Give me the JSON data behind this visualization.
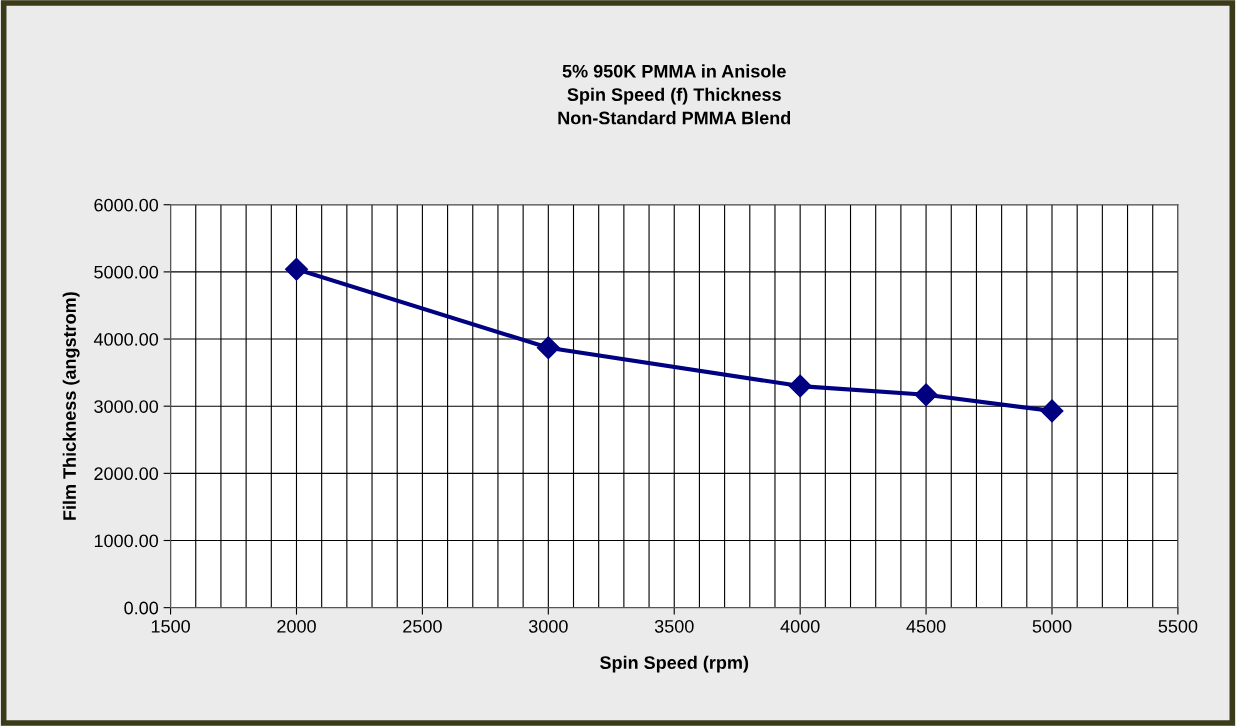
{
  "chart_data": {
    "type": "line",
    "title": "5% 950K PMMA in Anisole\nSpin Speed (f) Thickness\nNon-Standard PMMA Blend",
    "xlabel": "Spin Speed (rpm)",
    "ylabel": "Film Thickness (angstrom)",
    "x": [
      2000,
      3000,
      4000,
      4500,
      5000
    ],
    "series": [
      {
        "color": "#000080",
        "values": [
          5040,
          3870,
          3300,
          3170,
          2930
        ]
      }
    ],
    "xlim": [
      1500,
      5500
    ],
    "xticks": [
      1500,
      {
        "value": 1600,
        "label": null
      },
      {
        "value": 1700,
        "label": null
      },
      {
        "value": 1800,
        "label": null
      },
      {
        "value": 1900,
        "label": null
      },
      2000,
      {
        "value": 2100,
        "label": null
      },
      {
        "value": 2200,
        "label": null
      },
      {
        "value": 2300,
        "label": null
      },
      {
        "value": 2400,
        "label": null
      },
      2500,
      {
        "value": 2600,
        "label": null
      },
      {
        "value": 2700,
        "label": null
      },
      {
        "value": 2800,
        "label": null
      },
      {
        "value": 2900,
        "label": null
      },
      3000,
      {
        "value": 3100,
        "label": null
      },
      {
        "value": 3200,
        "label": null
      },
      {
        "value": 3300,
        "label": null
      },
      {
        "value": 3400,
        "label": null
      },
      3500,
      {
        "value": 3600,
        "label": null
      },
      {
        "value": 3700,
        "label": null
      },
      {
        "value": 3800,
        "label": null
      },
      {
        "value": 3900,
        "label": null
      },
      4000,
      {
        "value": 4100,
        "label": null
      },
      {
        "value": 4200,
        "label": null
      },
      {
        "value": 4300,
        "label": null
      },
      {
        "value": 4400,
        "label": null
      },
      4500,
      {
        "value": 4600,
        "label": null
      },
      {
        "value": 4700,
        "label": null
      },
      {
        "value": 4800,
        "label": null
      },
      {
        "value": 4900,
        "label": null
      },
      5000,
      {
        "value": 5100,
        "label": null
      },
      {
        "value": 5200,
        "label": null
      },
      {
        "value": 5300,
        "label": null
      },
      {
        "value": 5400,
        "label": null
      },
      5500
    ],
    "ylim": [
      0,
      6000
    ],
    "yticks": [
      {
        "value": 0,
        "label": "0.00"
      },
      {
        "value": 1000,
        "label": "1000.00"
      },
      {
        "value": 2000,
        "label": "2000.00"
      },
      {
        "value": 3000,
        "label": "3000.00"
      },
      {
        "value": 4000,
        "label": "4000.00"
      },
      {
        "value": 5000,
        "label": "5000.00"
      },
      {
        "value": 6000,
        "label": "6000.00"
      }
    ],
    "grid": true,
    "marker": "diamond",
    "line_style": "solid"
  }
}
